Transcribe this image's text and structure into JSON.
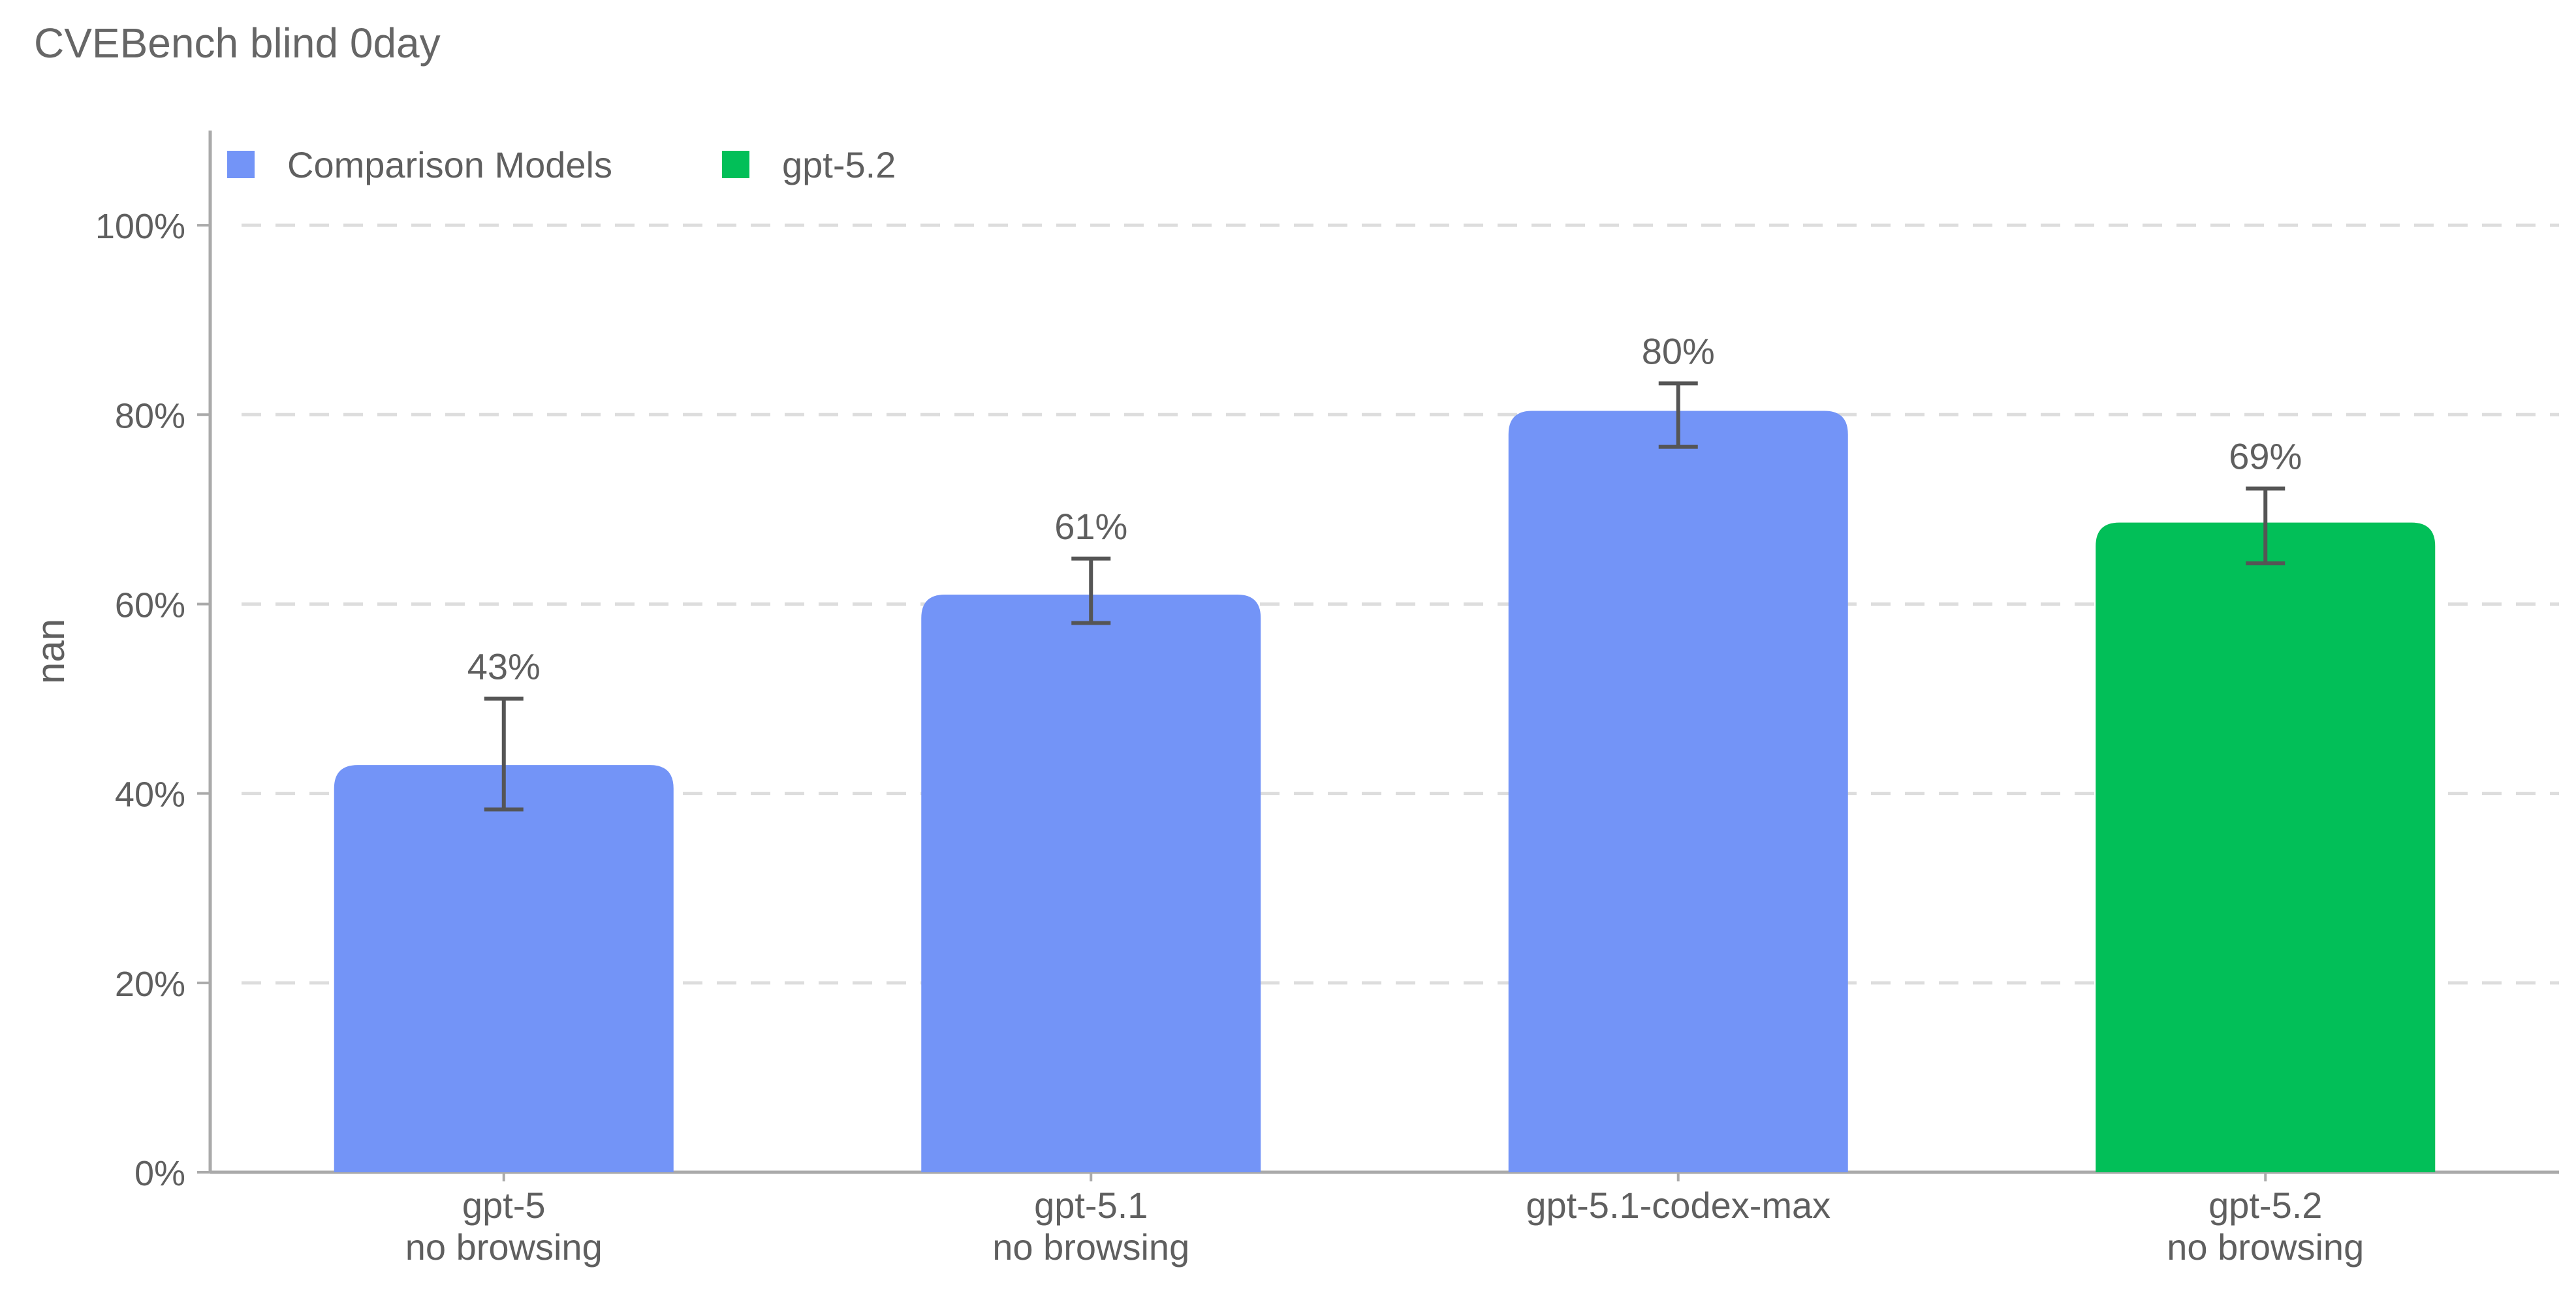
{
  "chart_data": {
    "type": "bar",
    "title": "CVEBench blind 0day",
    "ylabel": "nan",
    "xlabel": "",
    "ylim": [
      0,
      110
    ],
    "yticks": [
      0,
      20,
      40,
      60,
      80,
      100
    ],
    "ytick_labels": [
      "0%",
      "20%",
      "40%",
      "60%",
      "80%",
      "100%"
    ],
    "grid": "horizontal dashed",
    "legend_position": "top-left",
    "legend": [
      {
        "label": "Comparison Models",
        "color": "#7394f7"
      },
      {
        "label": "gpt-5.2",
        "color": "#02bf58"
      }
    ],
    "categories": [
      [
        "gpt-5",
        "no browsing"
      ],
      [
        "gpt-5.1",
        "no browsing"
      ],
      [
        "gpt-5.1-codex-max"
      ],
      [
        "gpt-5.2",
        "no browsing"
      ]
    ],
    "series": [
      {
        "name": "Comparison Models",
        "color": "#7394f7",
        "values": [
          43,
          61,
          80.4,
          null
        ],
        "error_low": [
          38.3,
          58,
          76.6,
          null
        ],
        "error_high": [
          50,
          64.8,
          83.3,
          null
        ],
        "labels": [
          "43%",
          "61%",
          "80%",
          null
        ]
      },
      {
        "name": "gpt-5.2",
        "color": "#02bf58",
        "values": [
          null,
          null,
          null,
          68.6
        ],
        "error_low": [
          null,
          null,
          null,
          64.3
        ],
        "error_high": [
          null,
          null,
          null,
          72.2
        ],
        "labels": [
          null,
          null,
          null,
          "69%"
        ]
      }
    ]
  }
}
